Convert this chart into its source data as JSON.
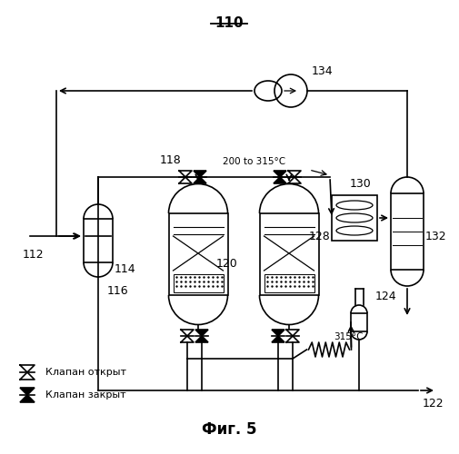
{
  "title": "110",
  "fig_label": "Фиг. 5",
  "bg_color": "#ffffff",
  "line_color": "#000000",
  "legend_open": "Клапан открыт",
  "legend_closed": "Клапан закрыт",
  "temp1": "200 to 315°C",
  "temp2": "315°C"
}
